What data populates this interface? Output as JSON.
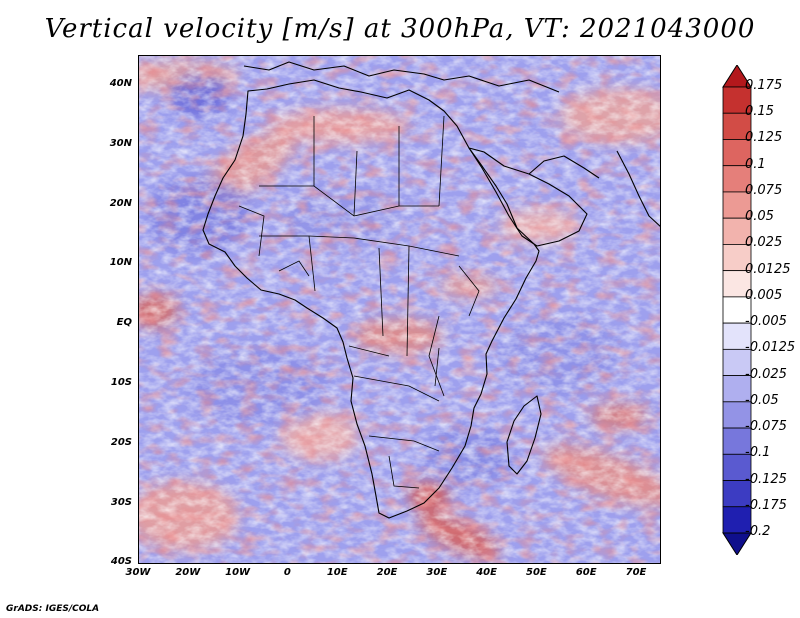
{
  "title": "Vertical velocity [m/s] at 300hPa, VT: 2021043000",
  "credit": "GrADS: IGES/COLA",
  "lat_labels": [
    "40N",
    "30N",
    "20N",
    "10N",
    "EQ",
    "10S",
    "20S",
    "30S",
    "40S"
  ],
  "lon_labels": [
    "30W",
    "20W",
    "10W",
    "0",
    "10E",
    "20E",
    "30E",
    "40E",
    "50E",
    "60E",
    "70E"
  ],
  "colorbar": {
    "labels": [
      "0.175",
      "0.15",
      "0.125",
      "0.1",
      "0.075",
      "0.05",
      "0.025",
      "0.0125",
      "0.005",
      "-0.005",
      "-0.0125",
      "-0.025",
      "-0.05",
      "-0.075",
      "-0.1",
      "-0.125",
      "-0.175",
      "-0.2"
    ],
    "colors": [
      "#b3181c",
      "#c5312f",
      "#d24c46",
      "#dd6560",
      "#e57f7a",
      "#ec9a94",
      "#f2b3ad",
      "#f7cdc8",
      "#fbe6e3",
      "#ffffff",
      "#e3e3fb",
      "#c9c9f5",
      "#afafef",
      "#9393e6",
      "#7777dc",
      "#5a5ad0",
      "#3c3cc2",
      "#1f1fb0",
      "#0f0f8c"
    ]
  },
  "extent": {
    "lon_min": -30,
    "lon_max": 75,
    "lat_min": -40,
    "lat_max": 45
  }
}
